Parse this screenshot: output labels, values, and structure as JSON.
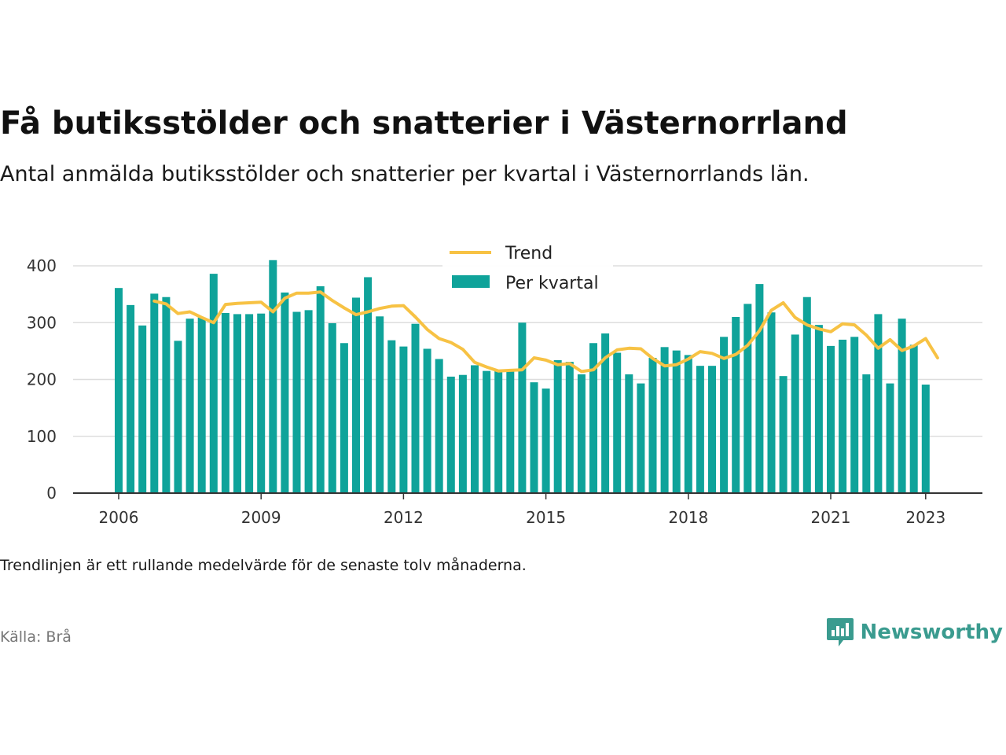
{
  "title": "Få butiksstölder och snatterier i Västernorrland",
  "subtitle": "Antal anmälda butiksstölder och snatterier per kvartal i Västernorrlands län.",
  "note": "Trendlinjen är ett rullande medelvärde för de senaste tolv månaderna.",
  "source": "Källa: Brå",
  "brand": {
    "name": "Newsworthy",
    "icon": "newsworthy-logo-icon",
    "color": "#3a9b8f"
  },
  "colors": {
    "bars": "#0fa39a",
    "trend": "#f7c244",
    "grid": "#dddddd",
    "axis": "#333333"
  },
  "chart_data": {
    "type": "bar",
    "x_start": "2006 Q1",
    "ylim": [
      0,
      420
    ],
    "yticks": [
      0,
      100,
      200,
      300,
      400
    ],
    "xticks": [
      {
        "label": "2006",
        "year": 2006.0
      },
      {
        "label": "2009",
        "year": 2009.0
      },
      {
        "label": "2012",
        "year": 2012.0
      },
      {
        "label": "2015",
        "year": 2015.0
      },
      {
        "label": "2018",
        "year": 2018.0
      },
      {
        "label": "2021",
        "year": 2021.0
      },
      {
        "label": "2023",
        "year": 2023.0
      }
    ],
    "legend": {
      "position": "top-center",
      "trend_label": "Trend",
      "bars_label": "Per kvartal"
    },
    "grid": true,
    "series": [
      {
        "name": "Per kvartal",
        "type": "bar",
        "values": [
          361,
          331,
          295,
          351,
          345,
          268,
          307,
          309,
          386,
          317,
          315,
          315,
          316,
          410,
          353,
          319,
          322,
          364,
          299,
          264,
          344,
          380,
          311,
          269,
          258,
          298,
          254,
          236,
          205,
          208,
          225,
          215,
          215,
          214,
          300,
          195,
          184,
          234,
          231,
          209,
          264,
          281,
          247,
          209,
          193,
          238,
          257,
          251,
          243,
          224,
          224,
          275,
          310,
          333,
          368,
          318,
          206,
          279,
          345,
          296,
          259,
          270,
          275,
          209,
          315,
          193,
          307,
          261,
          191
        ]
      },
      {
        "name": "Trend",
        "type": "line",
        "start_index": 3,
        "values": [
          338,
          333,
          316,
          319,
          309,
          300,
          332,
          334,
          335,
          336,
          319,
          343,
          352,
          352,
          354,
          339,
          326,
          314,
          319,
          325,
          329,
          330,
          310,
          288,
          272,
          265,
          253,
          230,
          222,
          215,
          216,
          217,
          238,
          234,
          226,
          228,
          214,
          217,
          238,
          252,
          255,
          254,
          237,
          224,
          226,
          236,
          249,
          246,
          237,
          244,
          260,
          286,
          322,
          335,
          309,
          296,
          289,
          284,
          298,
          296,
          278,
          255,
          270,
          251,
          259,
          272,
          238
        ]
      }
    ]
  }
}
